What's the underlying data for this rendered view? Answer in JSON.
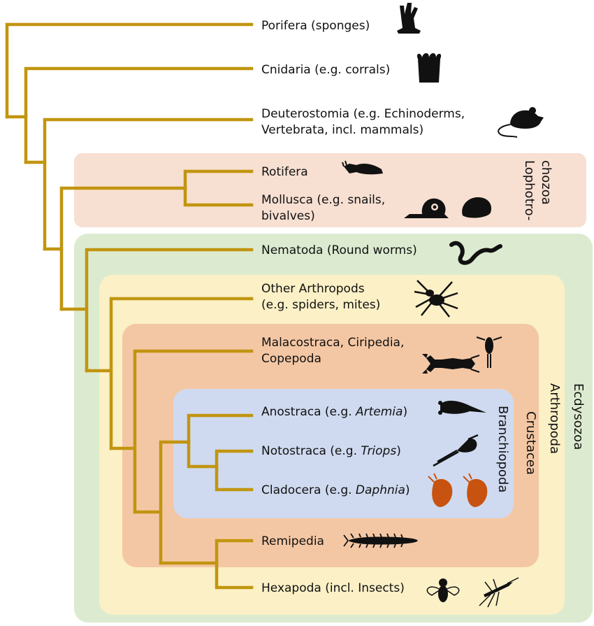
{
  "colors": {
    "branch": "#c1950f",
    "lophotrochozoa_box": "#f7dfd2",
    "ecdysozoa_box": "#dcebd0",
    "arthropoda_box": "#fbf0c6",
    "crustacea_box": "#f4c7a4",
    "branchiopoda_box": "#cfdaf0",
    "silhouette": "#111111",
    "daphnia_silhouette": "#c8520f"
  },
  "taxa": [
    {
      "id": "porifera",
      "lines": [
        "Porifera (sponges)"
      ],
      "icon": "sponge-icon"
    },
    {
      "id": "cnidaria",
      "lines": [
        "Cnidaria (e.g. corrals)"
      ],
      "icon": "anemone-icon"
    },
    {
      "id": "deuterostomia",
      "lines": [
        "Deuterostomia (e.g. Echinoderms,",
        "Vertebrata, incl. mammals)"
      ],
      "icon": "mouse-icon"
    },
    {
      "id": "rotifera",
      "lines": [
        "Rotifera"
      ],
      "icon": "rotifer-icon"
    },
    {
      "id": "mollusca",
      "lines": [
        "Mollusca (e.g. snails,",
        "bivalves)"
      ],
      "icon": "snail-icon"
    },
    {
      "id": "nematoda",
      "lines": [
        "Nematoda (Round worms)"
      ],
      "icon": "worm-icon"
    },
    {
      "id": "other_arthropods",
      "lines": [
        "Other Arthropods",
        "(e.g. spiders, mites)"
      ],
      "icon": "spider-icon"
    },
    {
      "id": "malacostraca",
      "lines": [
        "Malacostraca, Ciripedia,",
        "Copepoda"
      ],
      "icon": "lobster-icon"
    },
    {
      "id": "anostraca",
      "text": "Anostraca (e.g. ",
      "italic": "Artemia",
      "suffix": ")",
      "icon": "artemia-icon"
    },
    {
      "id": "notostraca",
      "text": "Notostraca (e.g. ",
      "italic": "Triops",
      "suffix": ")",
      "icon": "triops-icon"
    },
    {
      "id": "cladocera",
      "text": "Cladocera (e.g. ",
      "italic": "Daphnia",
      "suffix": ")",
      "icon": "daphnia-icon"
    },
    {
      "id": "remipedia",
      "lines": [
        "Remipedia"
      ],
      "icon": "remipede-icon"
    },
    {
      "id": "hexapoda",
      "lines": [
        "Hexapoda (incl. Insects)"
      ],
      "icon": "fly-icon"
    }
  ],
  "groups": {
    "lophotrochozoa": [
      "Lophotro-",
      "chozoa"
    ],
    "ecdysozoa": "Ecdysozoa",
    "arthropoda": "Arthropoda",
    "crustacea": "Crustacea",
    "branchiopoda": "Branchiopoda"
  }
}
